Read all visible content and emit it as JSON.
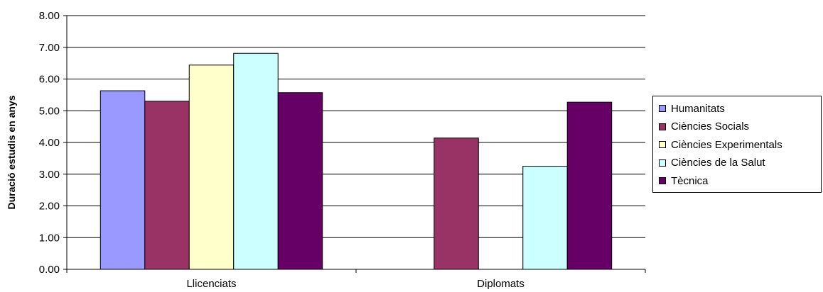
{
  "chart_data": {
    "type": "bar",
    "title": "",
    "xlabel": "",
    "ylabel": "Duració estudis en anys",
    "ylim": [
      0,
      8
    ],
    "yticks": [
      "0.00",
      "1.00",
      "2.00",
      "3.00",
      "4.00",
      "5.00",
      "6.00",
      "7.00",
      "8.00"
    ],
    "categories": [
      "Llicenciats",
      "Diplomats"
    ],
    "series": [
      {
        "name": "Humanitats",
        "color": "#9999ff",
        "values": [
          5.63,
          null
        ]
      },
      {
        "name": "Ciències Socials",
        "color": "#993366",
        "values": [
          5.3,
          4.14
        ]
      },
      {
        "name": "Ciències Experimentals",
        "color": "#ffffcc",
        "values": [
          6.44,
          null
        ]
      },
      {
        "name": "Ciències de la Salut",
        "color": "#ccffff",
        "values": [
          6.81,
          3.25
        ]
      },
      {
        "name": "Tècnica",
        "color": "#660066",
        "values": [
          5.57,
          5.27
        ]
      }
    ],
    "grid": true,
    "legend_position": "right"
  }
}
